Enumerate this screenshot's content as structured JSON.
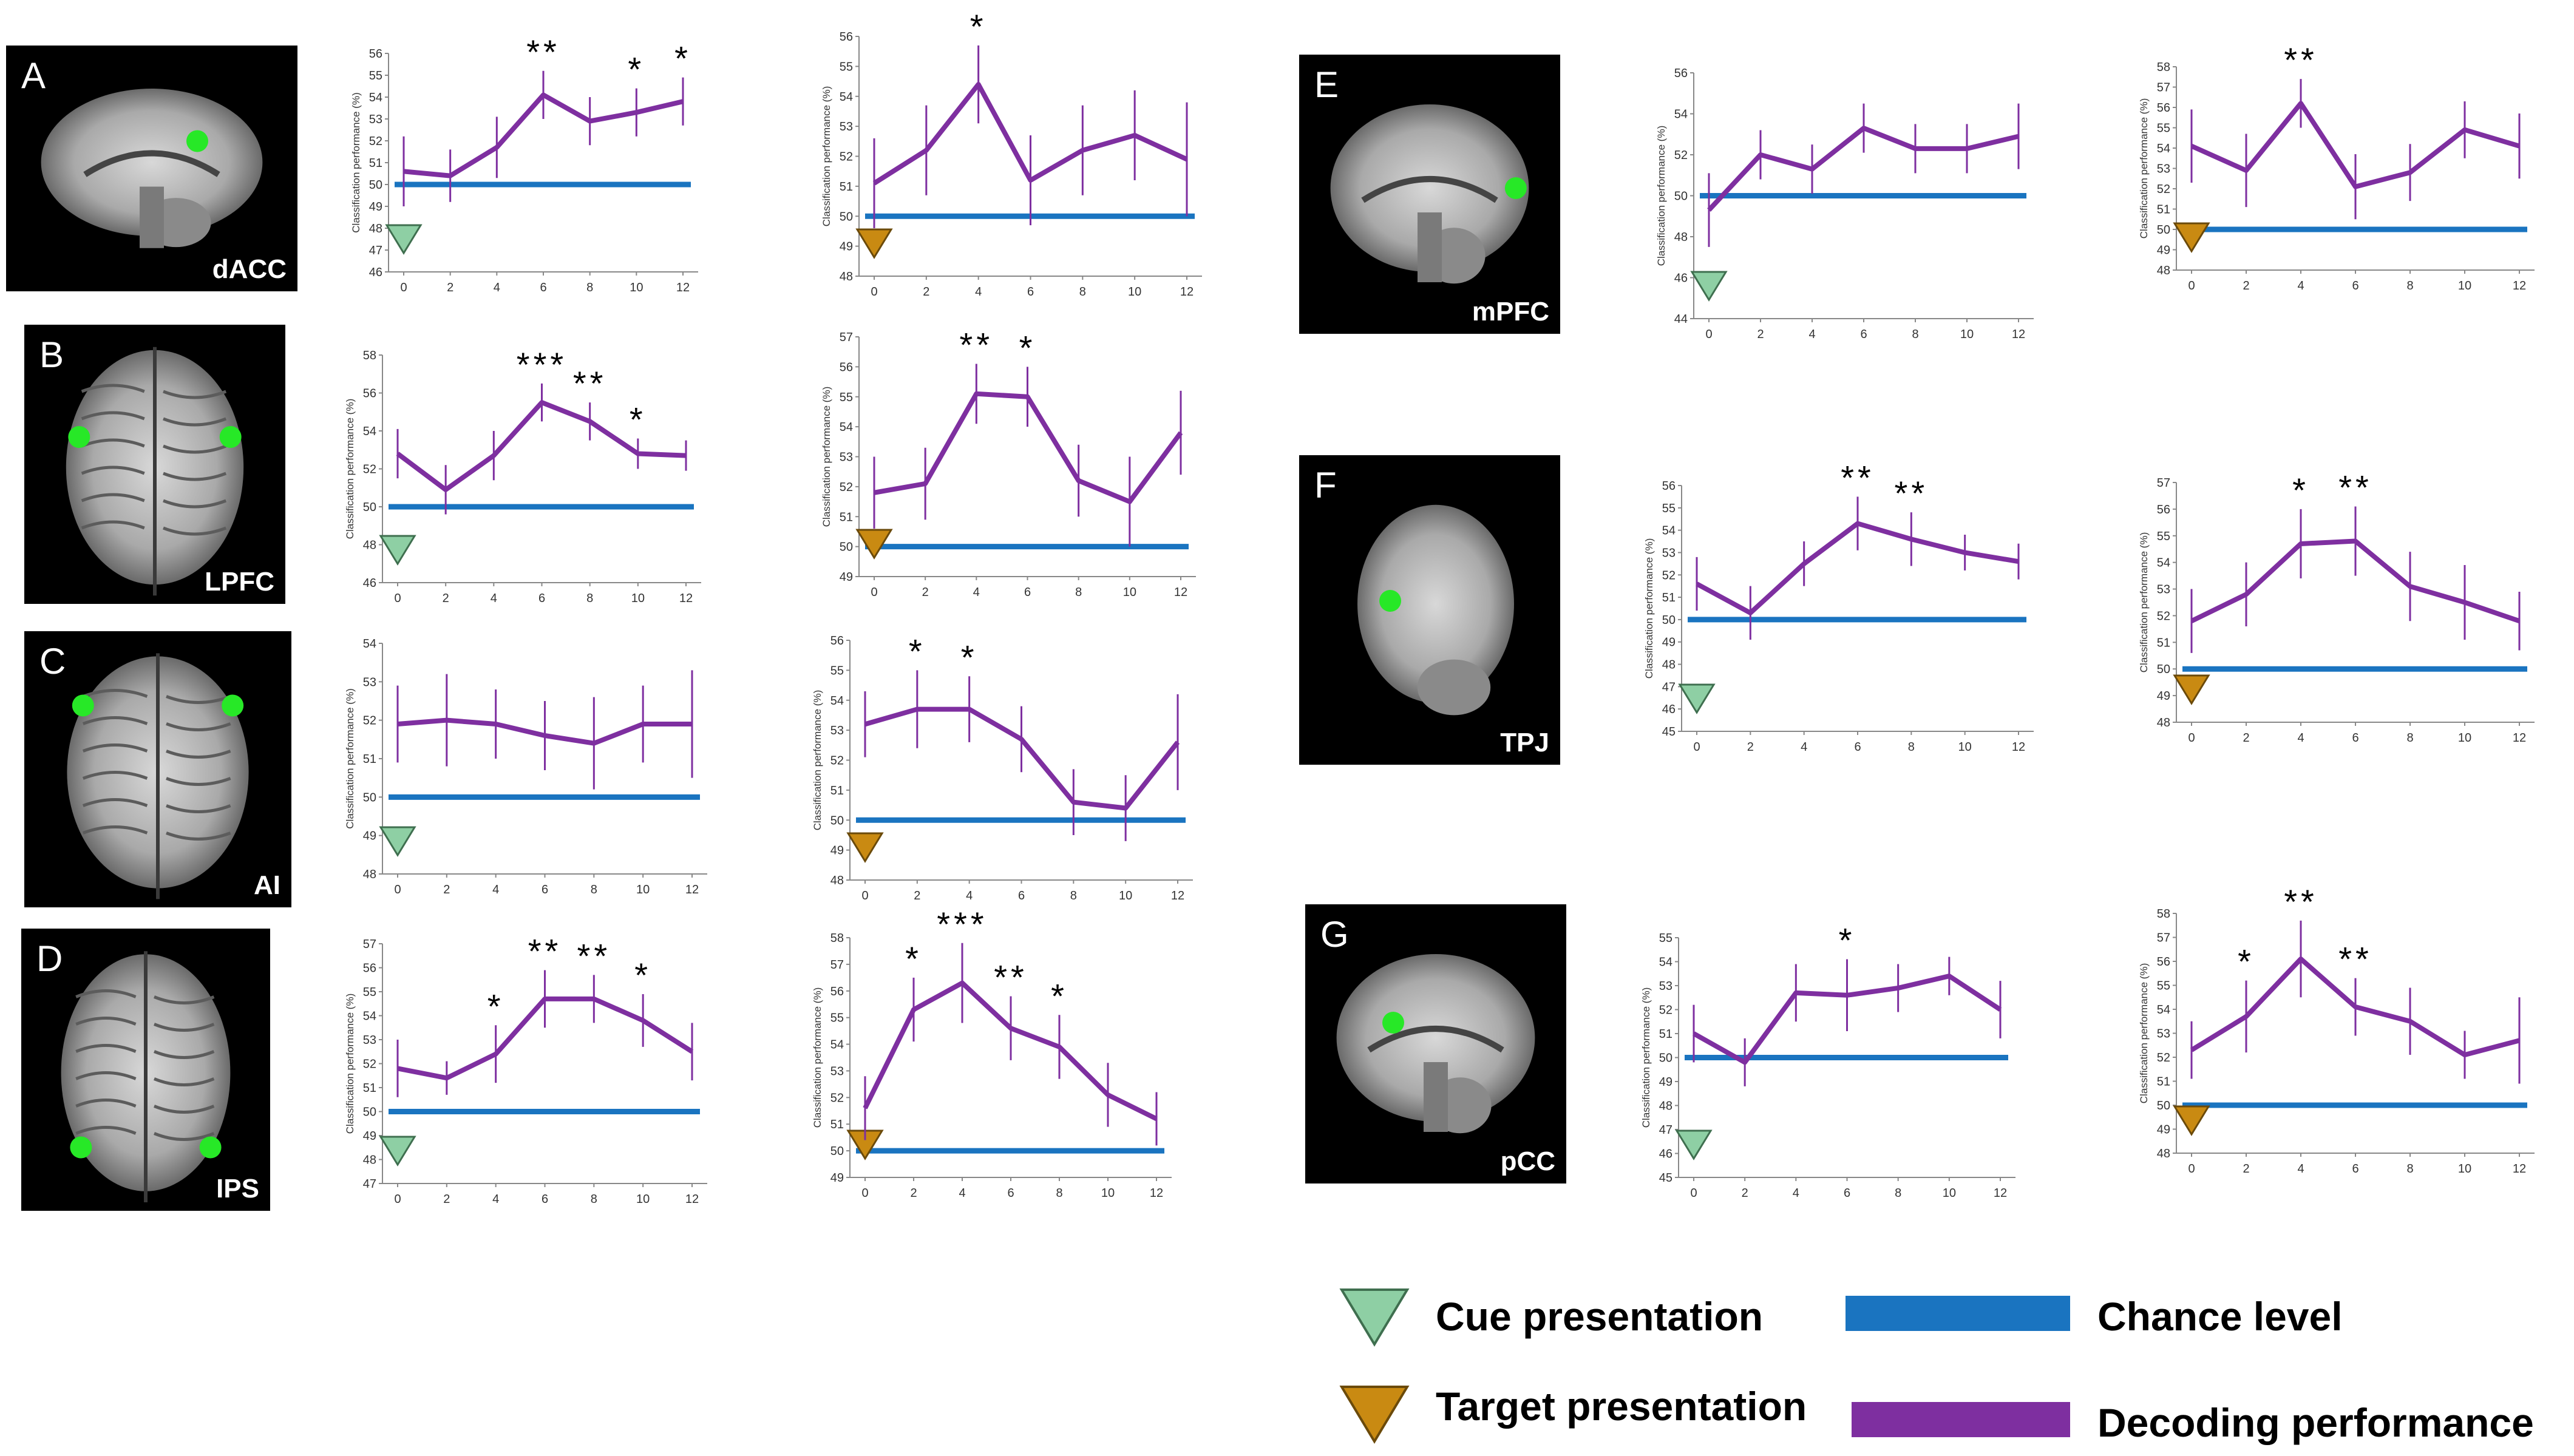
{
  "colors": {
    "decoding": "#7e2fa0",
    "chance": "#1a74c0",
    "cue": "#8ecfa4",
    "target": "#c98a12",
    "brain_bg": "#000000",
    "roi": "#27e827"
  },
  "x_ticks": [
    "0",
    "2",
    "4",
    "6",
    "8",
    "10",
    "12"
  ],
  "x_values": [
    0,
    2,
    4,
    6,
    8,
    10,
    12
  ],
  "legend": {
    "cue": "Cue presentation",
    "chance": "Chance level",
    "target": "Target presentation",
    "decoding": "Decoding performance"
  },
  "panels": [
    {
      "letter": "A",
      "region": "dACC",
      "view": "sagittal"
    },
    {
      "letter": "B",
      "region": "LPFC",
      "view": "axial"
    },
    {
      "letter": "C",
      "region": "AI",
      "view": "axial"
    },
    {
      "letter": "D",
      "region": "IPS",
      "view": "axial"
    },
    {
      "letter": "E",
      "region": "mPFC",
      "view": "sagittal"
    },
    {
      "letter": "F",
      "region": "TPJ",
      "view": "lateral"
    },
    {
      "letter": "G",
      "region": "pCC",
      "view": "sagittal"
    }
  ],
  "chart_data": [
    {
      "type": "line",
      "panel": "A",
      "condition": "cue",
      "ylabel": "Classification performance (%)",
      "y_ticks": [
        46,
        47,
        48,
        49,
        50,
        51,
        52,
        53,
        54,
        55,
        56
      ],
      "ylim": [
        46,
        56
      ],
      "chance": 50,
      "values": [
        50.6,
        50.4,
        51.7,
        54.1,
        52.9,
        53.3,
        53.8
      ],
      "errors": [
        1.6,
        1.2,
        1.4,
        1.1,
        1.1,
        1.1,
        1.1
      ],
      "stars": [
        "",
        "",
        "",
        "**",
        "",
        "*",
        "*"
      ]
    },
    {
      "type": "line",
      "panel": "A",
      "condition": "target",
      "ylabel": "Classification performance (%)",
      "y_ticks": [
        48,
        49,
        50,
        51,
        52,
        53,
        54,
        55,
        56
      ],
      "ylim": [
        48,
        56
      ],
      "chance": 50,
      "values": [
        51.1,
        52.2,
        54.4,
        51.2,
        52.2,
        52.7,
        51.9
      ],
      "errors": [
        1.5,
        1.5,
        1.3,
        1.5,
        1.5,
        1.5,
        1.9
      ],
      "stars": [
        "",
        "",
        "*",
        "",
        "",
        "",
        ""
      ]
    },
    {
      "type": "line",
      "panel": "B",
      "condition": "cue",
      "ylabel": "Classification performance (%)",
      "y_ticks": [
        46,
        48,
        50,
        52,
        54,
        56,
        58
      ],
      "ylim": [
        46,
        58
      ],
      "chance": 50,
      "values": [
        52.8,
        50.9,
        52.7,
        55.5,
        54.5,
        52.8,
        52.7
      ],
      "errors": [
        1.3,
        1.3,
        1.3,
        1.0,
        1.0,
        0.8,
        0.8
      ],
      "stars": [
        "",
        "",
        "",
        "***",
        "**",
        "*",
        ""
      ]
    },
    {
      "type": "line",
      "panel": "B",
      "condition": "target",
      "ylabel": "Classification performance (%)",
      "y_ticks": [
        49,
        50,
        51,
        52,
        53,
        54,
        55,
        56,
        57
      ],
      "ylim": [
        49,
        57
      ],
      "chance": 50,
      "values": [
        51.8,
        52.1,
        55.1,
        55.0,
        52.2,
        51.5,
        53.8
      ],
      "errors": [
        1.2,
        1.2,
        1.0,
        1.0,
        1.2,
        1.5,
        1.4
      ],
      "stars": [
        "",
        "",
        "**",
        "*",
        "",
        "",
        ""
      ]
    },
    {
      "type": "line",
      "panel": "C",
      "condition": "cue",
      "ylabel": "Classification performance (%)",
      "y_ticks": [
        48,
        49,
        50,
        51,
        52,
        53,
        54
      ],
      "ylim": [
        48,
        54
      ],
      "chance": 50,
      "values": [
        51.9,
        52.0,
        51.9,
        51.6,
        51.4,
        51.9,
        51.9
      ],
      "errors": [
        1.0,
        1.2,
        0.9,
        0.9,
        1.2,
        1.0,
        1.4
      ],
      "stars": [
        "",
        "",
        "",
        "",
        "",
        "",
        ""
      ]
    },
    {
      "type": "line",
      "panel": "C",
      "condition": "target",
      "ylabel": "Classification performance (%)",
      "y_ticks": [
        48,
        49,
        50,
        51,
        52,
        53,
        54,
        55,
        56
      ],
      "ylim": [
        48,
        56
      ],
      "chance": 50,
      "values": [
        53.2,
        53.7,
        53.7,
        52.7,
        50.6,
        50.4,
        52.6
      ],
      "errors": [
        1.1,
        1.3,
        1.1,
        1.1,
        1.1,
        1.1,
        1.6
      ],
      "stars": [
        "",
        "*",
        "*",
        "",
        "",
        "",
        ""
      ]
    },
    {
      "type": "line",
      "panel": "D",
      "condition": "cue",
      "ylabel": "Classification performance (%)",
      "y_ticks": [
        47,
        48,
        49,
        50,
        51,
        52,
        53,
        54,
        55,
        56,
        57
      ],
      "ylim": [
        47,
        57
      ],
      "chance": 50,
      "values": [
        51.8,
        51.4,
        52.4,
        54.7,
        54.7,
        53.8,
        52.5
      ],
      "errors": [
        1.2,
        0.7,
        1.2,
        1.2,
        1.0,
        1.1,
        1.2
      ],
      "stars": [
        "",
        "",
        "*",
        "**",
        "**",
        "*",
        ""
      ]
    },
    {
      "type": "line",
      "panel": "D",
      "condition": "target",
      "ylabel": "Classification performance (%)",
      "y_ticks": [
        49,
        50,
        51,
        52,
        53,
        54,
        55,
        56,
        57,
        58
      ],
      "ylim": [
        49,
        58
      ],
      "chance": 50,
      "values": [
        51.6,
        55.3,
        56.3,
        54.6,
        53.9,
        52.1,
        51.2
      ],
      "errors": [
        1.2,
        1.2,
        1.5,
        1.2,
        1.2,
        1.2,
        1.0
      ],
      "stars": [
        "",
        "*",
        "***",
        "**",
        "*",
        "",
        ""
      ]
    },
    {
      "type": "line",
      "panel": "E",
      "condition": "cue",
      "ylabel": "Classification performance (%)",
      "y_ticks": [
        44,
        46,
        48,
        50,
        52,
        54,
        56
      ],
      "ylim": [
        44,
        56
      ],
      "chance": 50,
      "values": [
        49.3,
        52.0,
        51.3,
        53.3,
        52.3,
        52.3,
        52.9
      ],
      "errors": [
        1.8,
        1.2,
        1.2,
        1.2,
        1.2,
        1.2,
        1.6
      ],
      "stars": [
        "",
        "",
        "",
        "",
        "",
        "",
        ""
      ]
    },
    {
      "type": "line",
      "panel": "E",
      "condition": "target",
      "ylabel": "Classification performance (%)",
      "y_ticks": [
        48,
        49,
        50,
        51,
        52,
        53,
        54,
        55,
        56,
        57,
        58
      ],
      "ylim": [
        48,
        58
      ],
      "chance": 50,
      "values": [
        54.1,
        52.9,
        56.2,
        52.1,
        52.8,
        54.9,
        54.1
      ],
      "errors": [
        1.8,
        1.8,
        1.2,
        1.6,
        1.4,
        1.4,
        1.6
      ],
      "stars": [
        "",
        "",
        "**",
        "",
        "",
        "",
        ""
      ]
    },
    {
      "type": "line",
      "panel": "F",
      "condition": "cue",
      "ylabel": "Classification performance (%)",
      "y_ticks": [
        45,
        46,
        47,
        48,
        49,
        50,
        51,
        52,
        53,
        54,
        55,
        56
      ],
      "ylim": [
        45,
        56
      ],
      "chance": 50,
      "values": [
        51.6,
        50.3,
        52.5,
        54.3,
        53.6,
        53.0,
        52.6
      ],
      "errors": [
        1.2,
        1.2,
        1.0,
        1.2,
        1.2,
        0.8,
        0.8
      ],
      "stars": [
        "",
        "",
        "",
        "**",
        "**",
        "",
        ""
      ]
    },
    {
      "type": "line",
      "panel": "F",
      "condition": "target",
      "ylabel": "Classification performance (%)",
      "y_ticks": [
        48,
        49,
        50,
        51,
        52,
        53,
        54,
        55,
        56,
        57
      ],
      "ylim": [
        48,
        57
      ],
      "chance": 50,
      "values": [
        51.8,
        52.8,
        54.7,
        54.8,
        53.1,
        52.5,
        51.8
      ],
      "errors": [
        1.2,
        1.2,
        1.3,
        1.3,
        1.3,
        1.4,
        1.1
      ],
      "stars": [
        "",
        "",
        "*",
        "**",
        "",
        "",
        ""
      ]
    },
    {
      "type": "line",
      "panel": "G",
      "condition": "cue",
      "ylabel": "Classification performance (%)",
      "y_ticks": [
        45,
        46,
        47,
        48,
        49,
        50,
        51,
        52,
        53,
        54,
        55
      ],
      "ylim": [
        45,
        55
      ],
      "chance": 50,
      "values": [
        51.0,
        49.8,
        52.7,
        52.6,
        52.9,
        53.4,
        52.0
      ],
      "errors": [
        1.2,
        1.0,
        1.2,
        1.5,
        1.0,
        0.8,
        1.2
      ],
      "stars": [
        "",
        "",
        "",
        "*",
        "",
        "",
        ""
      ]
    },
    {
      "type": "line",
      "panel": "G",
      "condition": "target",
      "ylabel": "Classification performance (%)",
      "y_ticks": [
        48,
        49,
        50,
        51,
        52,
        53,
        54,
        55,
        56,
        57,
        58
      ],
      "ylim": [
        48,
        58
      ],
      "chance": 50,
      "values": [
        52.3,
        53.7,
        56.1,
        54.1,
        53.5,
        52.1,
        52.7
      ],
      "errors": [
        1.2,
        1.5,
        1.6,
        1.2,
        1.4,
        1.0,
        1.8
      ],
      "stars": [
        "",
        "*",
        "**",
        "**",
        "",
        "",
        ""
      ]
    }
  ]
}
